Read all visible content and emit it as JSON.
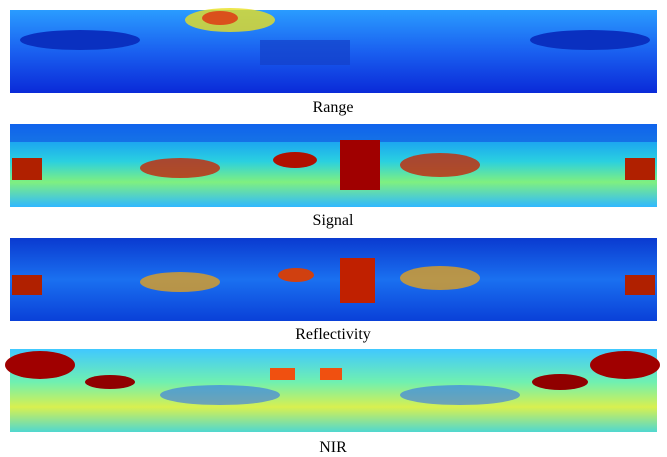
{
  "panels": [
    {
      "caption": "Range"
    },
    {
      "caption": "Signal"
    },
    {
      "caption": "Reflectivity"
    },
    {
      "caption": "NIR"
    }
  ]
}
